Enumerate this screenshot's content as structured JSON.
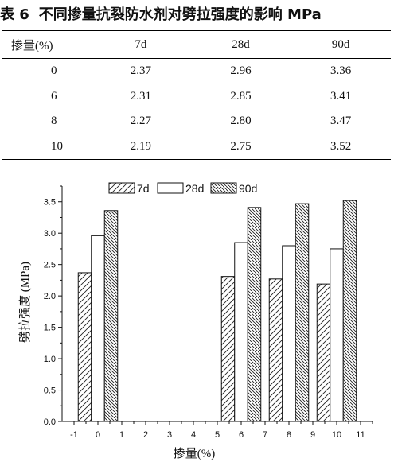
{
  "table": {
    "title_number": "表 6",
    "title_text": "不同掺量抗裂防水剂对劈拉强度的影响 MPa",
    "headers": [
      "掺量(%)",
      "7d",
      "28d",
      "90d"
    ],
    "rows": [
      [
        "0",
        "2.37",
        "2.96",
        "3.36"
      ],
      [
        "6",
        "2.31",
        "2.85",
        "3.41"
      ],
      [
        "8",
        "2.27",
        "2.80",
        "3.47"
      ],
      [
        "10",
        "2.19",
        "2.75",
        "3.52"
      ]
    ]
  },
  "chart_data": {
    "type": "bar",
    "xlabel": "掺量(%)",
    "ylabel": "劈拉强度 (MPa)",
    "x": [
      0,
      6,
      8,
      10
    ],
    "x_ticks": [
      "-1",
      "0",
      "1",
      "2",
      "3",
      "4",
      "5",
      "6",
      "7",
      "8",
      "9",
      "10",
      "11"
    ],
    "y_ticks": [
      "0.0",
      "0.5",
      "1.0",
      "1.5",
      "2.0",
      "2.5",
      "3.0",
      "3.5"
    ],
    "xlim": [
      -1.5,
      11.5
    ],
    "ylim": [
      0,
      3.75
    ],
    "legend_position": "top",
    "series": [
      {
        "name": "7d",
        "values": [
          2.37,
          2.31,
          2.27,
          2.19
        ],
        "pattern": "sparse-diagonal"
      },
      {
        "name": "28d",
        "values": [
          2.96,
          2.85,
          2.8,
          2.75
        ],
        "pattern": "solid-white"
      },
      {
        "name": "90d",
        "values": [
          3.36,
          3.41,
          3.47,
          3.52
        ],
        "pattern": "dense-diagonal"
      }
    ]
  }
}
